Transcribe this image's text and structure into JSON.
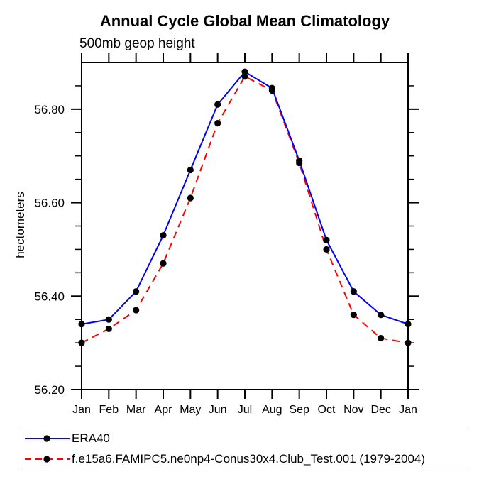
{
  "title": "Annual Cycle Global Mean Climatology",
  "subtitle": "500mb geop height",
  "ylabel": "hectometers",
  "colors": {
    "series1": "#0000ff",
    "series2": "#ff0000",
    "marker": "#000000",
    "axis": "#000000",
    "legend_border": "#808080"
  },
  "chart_data": {
    "type": "line",
    "categories": [
      "Jan",
      "Feb",
      "Mar",
      "Apr",
      "May",
      "Jun",
      "Jul",
      "Aug",
      "Sep",
      "Oct",
      "Nov",
      "Dec",
      "Jan"
    ],
    "series": [
      {
        "name": "ERA40",
        "color": "#0000ff",
        "line_style": "solid",
        "marker": "filled-circle",
        "values": [
          56.34,
          56.35,
          56.41,
          56.53,
          56.67,
          56.81,
          56.88,
          56.845,
          56.69,
          56.52,
          56.41,
          56.36,
          56.34
        ]
      },
      {
        "name": "f.e15a6.FAMIPC5.ne0np4-Conus30x4.Club_Test.001 (1979-2004)",
        "color": "#ff0000",
        "line_style": "dashed",
        "marker": "filled-circle",
        "values": [
          56.3,
          56.33,
          56.37,
          56.47,
          56.61,
          56.77,
          56.87,
          56.84,
          56.685,
          56.5,
          56.36,
          56.31,
          56.3
        ]
      }
    ],
    "title": "Annual Cycle Global Mean Climatology",
    "subtitle": "500mb geop height",
    "xlabel": "",
    "ylabel": "hectometers",
    "ylim": [
      56.2,
      56.9
    ],
    "yticks_major": [
      56.2,
      56.4,
      56.6,
      56.8
    ],
    "ytick_minor_step": 0.05,
    "ytick_label_format": "2-decimals",
    "grid": false,
    "legend_position": "bottom-box"
  }
}
